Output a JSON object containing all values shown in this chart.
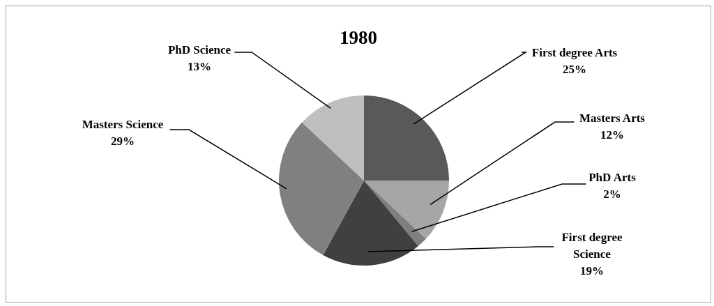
{
  "chart_data": {
    "type": "pie",
    "title": "1980",
    "categories": [
      "First degree Arts",
      "Masters Arts",
      "PhD Arts",
      "First degree Science",
      "Masters Science",
      "PhD Science"
    ],
    "values": [
      25,
      12,
      2,
      19,
      29,
      13
    ],
    "colors": [
      "#595959",
      "#a6a6a6",
      "#7f7f7f",
      "#404040",
      "#808080",
      "#bfbfbf"
    ],
    "value_labels": [
      "25%",
      "12%",
      "2%",
      "19%",
      "29%",
      "13%"
    ]
  }
}
